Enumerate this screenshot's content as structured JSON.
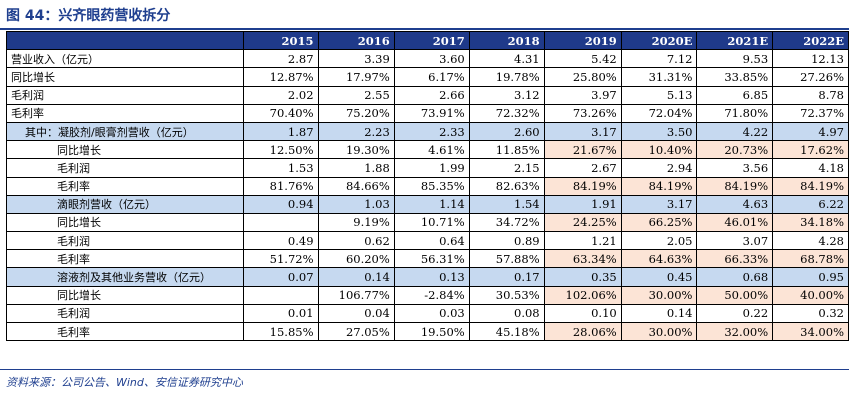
{
  "title": "图 44：兴齐眼药营收拆分",
  "source": "资料来源：公司公告、Wind、安信证券研究中心",
  "table": {
    "years": [
      "2015",
      "2016",
      "2017",
      "2018",
      "2019",
      "2020E",
      "2021E",
      "2022E"
    ],
    "rows": [
      {
        "label": "营业收入（亿元）",
        "indent": 0,
        "segment": false,
        "values": [
          "2.87",
          "3.39",
          "3.60",
          "4.31",
          "5.42",
          "7.12",
          "9.53",
          "12.13"
        ]
      },
      {
        "label": "同比增长",
        "indent": 0,
        "segment": false,
        "values": [
          "12.87%",
          "17.97%",
          "6.17%",
          "19.78%",
          "25.80%",
          "31.31%",
          "33.85%",
          "27.26%"
        ]
      },
      {
        "label": "毛利润",
        "indent": 0,
        "segment": false,
        "values": [
          "2.02",
          "2.55",
          "2.66",
          "3.12",
          "3.97",
          "5.13",
          "6.85",
          "8.78"
        ]
      },
      {
        "label": "毛利率",
        "indent": 0,
        "segment": false,
        "values": [
          "70.40%",
          "75.20%",
          "73.91%",
          "72.32%",
          "73.26%",
          "72.04%",
          "71.80%",
          "72.37%"
        ]
      },
      {
        "label": "其中：凝胶剂/眼膏剂营收（亿元）",
        "indent": 1,
        "segment": true,
        "values": [
          "1.87",
          "2.23",
          "2.33",
          "2.60",
          "3.17",
          "3.50",
          "4.22",
          "4.97"
        ]
      },
      {
        "label": "同比增长",
        "indent": 2,
        "segment": false,
        "highlight": true,
        "values": [
          "12.50%",
          "19.30%",
          "4.61%",
          "11.85%",
          "21.67%",
          "10.40%",
          "20.73%",
          "17.62%"
        ]
      },
      {
        "label": "毛利润",
        "indent": 2,
        "segment": false,
        "values": [
          "1.53",
          "1.88",
          "1.99",
          "2.15",
          "2.67",
          "2.94",
          "3.56",
          "4.18"
        ]
      },
      {
        "label": "毛利率",
        "indent": 2,
        "segment": false,
        "highlight": true,
        "values": [
          "81.76%",
          "84.66%",
          "85.35%",
          "82.63%",
          "84.19%",
          "84.19%",
          "84.19%",
          "84.19%"
        ]
      },
      {
        "label": "滴眼剂营收（亿元）",
        "indent": 2,
        "segment": true,
        "values": [
          "0.94",
          "1.03",
          "1.14",
          "1.54",
          "1.91",
          "3.17",
          "4.63",
          "6.22"
        ]
      },
      {
        "label": "同比增长",
        "indent": 2,
        "segment": false,
        "highlight": true,
        "values": [
          "",
          "9.19%",
          "10.71%",
          "34.72%",
          "24.25%",
          "66.25%",
          "46.01%",
          "34.18%"
        ]
      },
      {
        "label": "毛利润",
        "indent": 2,
        "segment": false,
        "values": [
          "0.49",
          "0.62",
          "0.64",
          "0.89",
          "1.21",
          "2.05",
          "3.07",
          "4.28"
        ]
      },
      {
        "label": "毛利率",
        "indent": 2,
        "segment": false,
        "highlight": true,
        "values": [
          "51.72%",
          "60.20%",
          "56.31%",
          "57.88%",
          "63.34%",
          "64.63%",
          "66.33%",
          "68.78%"
        ]
      },
      {
        "label": "溶液剂及其他业务营收（亿元）",
        "indent": 2,
        "segment": true,
        "values": [
          "0.07",
          "0.14",
          "0.13",
          "0.17",
          "0.35",
          "0.45",
          "0.68",
          "0.95"
        ]
      },
      {
        "label": "同比增长",
        "indent": 2,
        "segment": false,
        "highlight": true,
        "values": [
          "",
          "106.77%",
          "-2.84%",
          "30.53%",
          "102.06%",
          "30.00%",
          "50.00%",
          "40.00%"
        ]
      },
      {
        "label": "毛利润",
        "indent": 2,
        "segment": false,
        "values": [
          "0.01",
          "0.04",
          "0.03",
          "0.08",
          "0.10",
          "0.14",
          "0.22",
          "0.32"
        ]
      },
      {
        "label": "毛利率",
        "indent": 2,
        "segment": false,
        "highlight": true,
        "values": [
          "15.85%",
          "27.05%",
          "19.50%",
          "45.18%",
          "28.06%",
          "30.00%",
          "32.00%",
          "34.00%"
        ]
      }
    ]
  }
}
